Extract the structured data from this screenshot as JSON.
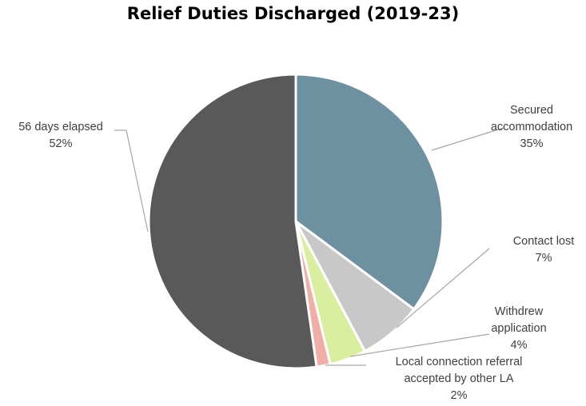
{
  "chart_data": {
    "type": "pie",
    "title": "Relief Duties Discharged (2019-23)",
    "slices": [
      {
        "label_lines": [
          "Secured",
          "accommodation"
        ],
        "pct_text": "35%",
        "value": 35,
        "color": "#6e91a1"
      },
      {
        "label_lines": [
          "Contact lost"
        ],
        "pct_text": "7%",
        "value": 7,
        "color": "#c8c8c8"
      },
      {
        "label_lines": [
          "Withdrew",
          "application"
        ],
        "pct_text": "4%",
        "value": 4,
        "color": "#daeea0"
      },
      {
        "label_lines": [
          "Local connection referral",
          "accepted by other LA"
        ],
        "pct_text": "2%",
        "value": 1.5,
        "color": "#f0aea6"
      },
      {
        "label_lines": [
          "56 days elapsed"
        ],
        "pct_text": "52%",
        "value": 52,
        "color": "#595959"
      }
    ],
    "start_angle_deg": 0,
    "direction": "clockwise",
    "legend": "none",
    "data_labels": "outside with leader lines"
  }
}
